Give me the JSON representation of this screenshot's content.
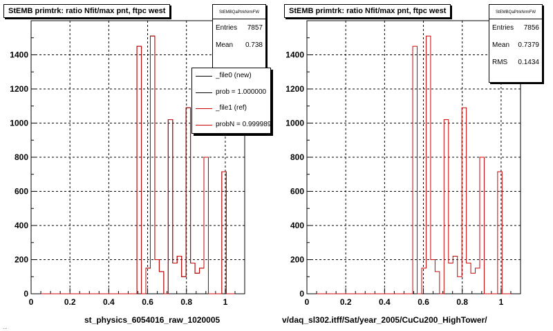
{
  "footer_text": "... ",
  "chart_data": [
    {
      "type": "bar",
      "title": "StEMB primtrk: ratio Nfit/max pnt, ftpc west",
      "xlabel": "st_physics_6054016_raw_1020005",
      "ylabel": "",
      "xlim": [
        0,
        1.1
      ],
      "ylim": [
        0,
        1600
      ],
      "x_ticks": [
        "0",
        "0.2",
        "0.4",
        "0.6",
        "0.8",
        "1"
      ],
      "y_ticks": [
        "0",
        "200",
        "400",
        "600",
        "800",
        "1000",
        "1200",
        "1400"
      ],
      "grid": true,
      "stats": {
        "name": "StEMBQaPtrkNrmFW",
        "entries_label": "Entries",
        "entries": "7857",
        "mean_label": "Mean",
        "mean": "0.738"
      },
      "legend": {
        "placement": "top-right",
        "entries": [
          {
            "label": "_file0 (new)",
            "color": "#000000"
          },
          {
            "label": "prob = 1.000000",
            "color": "#000000"
          },
          {
            "label": "_file1 (ref)",
            "color": "#cc0000"
          },
          {
            "label": "probN = 0.999989",
            "color": "#cc0000"
          }
        ]
      },
      "series": [
        {
          "name": "_file0 (new)",
          "color": "#000000",
          "bins": [
            [
              0.545,
              0.568,
              1450
            ],
            [
              0.568,
              0.591,
              0
            ],
            [
              0.591,
              0.614,
              150
            ],
            [
              0.614,
              0.637,
              1510
            ],
            [
              0.637,
              0.66,
              200
            ],
            [
              0.66,
              0.683,
              130
            ],
            [
              0.683,
              0.706,
              0
            ],
            [
              0.706,
              0.729,
              1020
            ],
            [
              0.729,
              0.752,
              180
            ],
            [
              0.752,
              0.775,
              220
            ],
            [
              0.775,
              0.798,
              100
            ],
            [
              0.798,
              0.821,
              1090
            ],
            [
              0.821,
              0.844,
              180
            ],
            [
              0.844,
              0.867,
              120
            ],
            [
              0.867,
              0.89,
              150
            ],
            [
              0.89,
              0.913,
              800
            ],
            [
              0.913,
              0.936,
              0
            ],
            [
              0.936,
              0.959,
              0
            ],
            [
              0.959,
              0.982,
              0
            ],
            [
              0.982,
              1.005,
              715
            ]
          ]
        },
        {
          "name": "_file1 (ref)",
          "color": "#cc0000",
          "bins": [
            [
              0.545,
              0.568,
              1450
            ],
            [
              0.568,
              0.591,
              0
            ],
            [
              0.591,
              0.614,
              150
            ],
            [
              0.614,
              0.637,
              1510
            ],
            [
              0.637,
              0.66,
              200
            ],
            [
              0.66,
              0.683,
              130
            ],
            [
              0.683,
              0.706,
              0
            ],
            [
              0.706,
              0.729,
              1020
            ],
            [
              0.729,
              0.752,
              180
            ],
            [
              0.752,
              0.775,
              220
            ],
            [
              0.775,
              0.798,
              100
            ],
            [
              0.798,
              0.821,
              1090
            ],
            [
              0.821,
              0.844,
              180
            ],
            [
              0.844,
              0.867,
              120
            ],
            [
              0.867,
              0.89,
              150
            ],
            [
              0.89,
              0.913,
              800
            ],
            [
              0.913,
              0.936,
              0
            ],
            [
              0.936,
              0.959,
              0
            ],
            [
              0.959,
              0.982,
              0
            ],
            [
              0.982,
              1.005,
              715
            ]
          ]
        }
      ]
    },
    {
      "type": "bar",
      "title": "StEMB primtrk: ratio Nfit/max pnt, ftpc west",
      "xlabel": "v/daq_sl302.itff/Sat/year_2005/CuCu200_HighTower/",
      "ylabel": "",
      "xlim": [
        0,
        1.1
      ],
      "ylim": [
        0,
        1600
      ],
      "x_ticks": [
        "0",
        "0.2",
        "0.4",
        "0.6",
        "0.8",
        "1"
      ],
      "y_ticks": [
        "0",
        "200",
        "400",
        "600",
        "800",
        "1000",
        "1200",
        "1400"
      ],
      "grid": true,
      "stats": {
        "name": "StEMBQaPtrkNrmFW",
        "entries_label": "Entries",
        "entries": "7856",
        "mean_label": "Mean",
        "mean": "0.7379",
        "rms_label": "RMS",
        "rms": "0.1434"
      },
      "series": [
        {
          "name": "",
          "color": "#cc0000",
          "bins": [
            [
              0.545,
              0.568,
              1450
            ],
            [
              0.568,
              0.591,
              0
            ],
            [
              0.591,
              0.614,
              150
            ],
            [
              0.614,
              0.637,
              1510
            ],
            [
              0.637,
              0.66,
              200
            ],
            [
              0.66,
              0.683,
              130
            ],
            [
              0.683,
              0.706,
              0
            ],
            [
              0.706,
              0.729,
              1020
            ],
            [
              0.729,
              0.752,
              180
            ],
            [
              0.752,
              0.775,
              220
            ],
            [
              0.775,
              0.798,
              100
            ],
            [
              0.798,
              0.821,
              1090
            ],
            [
              0.821,
              0.844,
              180
            ],
            [
              0.844,
              0.867,
              120
            ],
            [
              0.867,
              0.89,
              150
            ],
            [
              0.89,
              0.913,
              800
            ],
            [
              0.913,
              0.936,
              0
            ],
            [
              0.936,
              0.959,
              0
            ],
            [
              0.959,
              0.982,
              0
            ],
            [
              0.982,
              1.005,
              715
            ]
          ]
        }
      ]
    }
  ]
}
